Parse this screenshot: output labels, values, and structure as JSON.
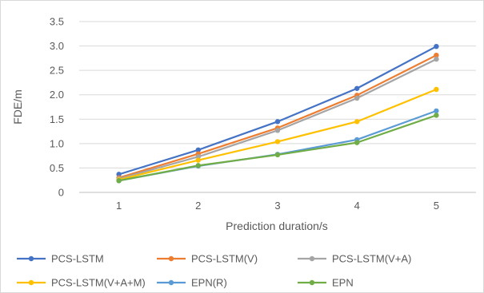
{
  "chart_data": {
    "type": "line",
    "title": "",
    "xlabel": "Prediction duration/s",
    "ylabel": "FDE/m",
    "x": [
      1,
      2,
      3,
      4,
      5
    ],
    "x_tick_labels": [
      "1",
      "2",
      "3",
      "4",
      "5"
    ],
    "ylim": [
      0,
      3.5
    ],
    "y_ticks": [
      "0",
      "0.5",
      "1.0",
      "1.5",
      "2.0",
      "2.5",
      "3.0",
      "3.5"
    ],
    "y_tick_values": [
      0,
      0.5,
      1.0,
      1.5,
      2.0,
      2.5,
      3.0,
      3.5
    ],
    "grid": "horizontal",
    "legend_position": "bottom",
    "series": [
      {
        "name": "PCS-LSTM",
        "color": "#4472c4",
        "values": [
          0.37,
          0.87,
          1.45,
          2.13,
          2.99
        ]
      },
      {
        "name": "PCS-LSTM(V)",
        "color": "#ed7d31",
        "values": [
          0.3,
          0.79,
          1.32,
          1.99,
          2.81
        ]
      },
      {
        "name": "PCS-LSTM(V+A)",
        "color": "#a5a5a5",
        "values": [
          0.28,
          0.73,
          1.27,
          1.93,
          2.73
        ]
      },
      {
        "name": "PCS-LSTM(V+A+M)",
        "color": "#ffc000",
        "values": [
          0.26,
          0.66,
          1.04,
          1.45,
          2.11
        ]
      },
      {
        "name": "EPN(R)",
        "color": "#5b9bd5",
        "values": [
          0.24,
          0.54,
          0.78,
          1.08,
          1.67
        ]
      },
      {
        "name": "EPN",
        "color": "#70ad47",
        "values": [
          0.24,
          0.55,
          0.77,
          1.02,
          1.58
        ]
      }
    ]
  }
}
